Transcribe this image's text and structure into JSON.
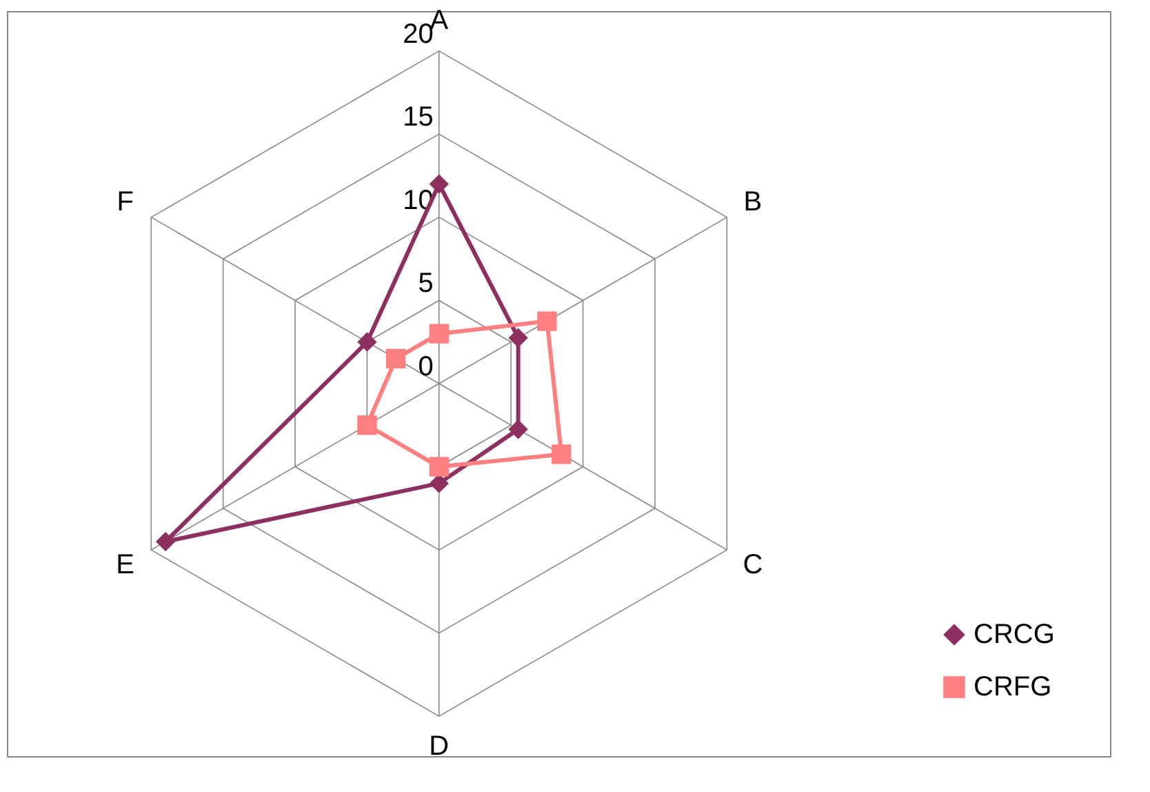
{
  "chart_data": {
    "type": "radar",
    "categories": [
      "A",
      "B",
      "C",
      "D",
      "E",
      "F"
    ],
    "series": [
      {
        "name": "CRCG",
        "color": "#8e2f62",
        "values": [
          12,
          5.5,
          5.5,
          6,
          19,
          5
        ]
      },
      {
        "name": "CRFG",
        "color": "#fe7f7f",
        "values": [
          3,
          7.5,
          8.5,
          5,
          5,
          3
        ]
      }
    ],
    "ylim": [
      0,
      20
    ],
    "yticks": [
      0,
      5,
      10,
      15,
      20
    ],
    "grid": true,
    "legend": "bottom right",
    "marker": "diamond",
    "line_style": "solid"
  }
}
